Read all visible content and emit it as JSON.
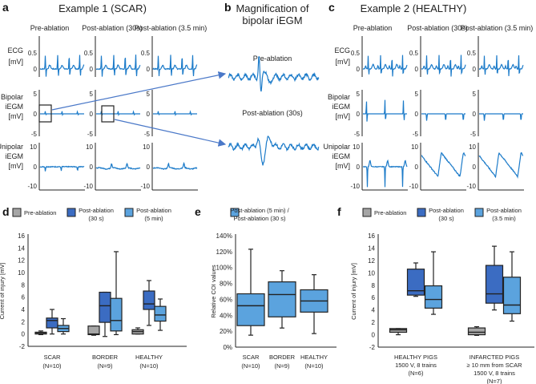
{
  "panel_a": {
    "letter": "a",
    "title": "Example 1 (SCAR)",
    "columns": [
      "Pre-ablation",
      "Post-ablation (30s)",
      "Post-ablation (3.5 min)"
    ],
    "rows": [
      {
        "l1": "ECG",
        "l2": "[mV]",
        "ticks": [
          "0.5",
          "0"
        ]
      },
      {
        "l1": "Bipolar",
        "l2": "iEGM",
        "l3": "[mV]",
        "ticks": [
          "5",
          "0",
          "-5"
        ]
      },
      {
        "l1": "Unipolar",
        "l2": "iEGM",
        "l3": "[mV]",
        "ticks": [
          "10",
          "0",
          "-10"
        ]
      }
    ]
  },
  "panel_b": {
    "letter": "b",
    "title1": "Magnification of",
    "title2": "bipolar iEGM",
    "pre": "Pre-ablation",
    "post": "Post-ablation (30s)"
  },
  "panel_c": {
    "letter": "c",
    "title": "Example 2 (HEALTHY)",
    "columns": [
      "Pre-ablation",
      "Post-ablation (30s)",
      "Post-ablation (3.5 min)"
    ]
  },
  "colors": {
    "pre": "#a6a6a6",
    "post_early": "#3b6cc2",
    "post_late": "#5ba3de",
    "trace": "#1c7bc9",
    "arrow": "#4a78c8"
  },
  "chart_data": [
    {
      "type": "box",
      "panel": "d",
      "legend": [
        {
          "name": "Pre-ablation"
        },
        {
          "name": "Post-ablation",
          "name2": "(30 s)"
        },
        {
          "name": "Post-ablation",
          "name2": "(5 min)"
        }
      ],
      "ylabel": "Current of injury [mV]",
      "ylim": [
        -2,
        16
      ],
      "yticks": [
        "16",
        "14",
        "12",
        "10",
        "8",
        "6",
        "4",
        "2",
        "0",
        "-2"
      ],
      "categories": [
        {
          "l1": "SCAR",
          "l2": "(N=10)"
        },
        {
          "l1": "BORDER",
          "l2": "(N=9)"
        },
        {
          "l1": "HEALTHY",
          "l2": "(N=10)"
        }
      ],
      "series": [
        {
          "name": "Pre-ablation",
          "boxes": [
            [
              -0.1,
              0,
              0.2,
              0.3,
              0.5
            ],
            [
              -0.2,
              -0.1,
              0,
              1.3,
              1.3
            ],
            [
              0,
              0,
              0.4,
              0.7,
              1.0
            ]
          ]
        },
        {
          "name": "Post-ablation (30 s)",
          "boxes": [
            [
              0,
              1.0,
              2.2,
              2.6,
              4.0
            ],
            [
              -0.4,
              1.9,
              4.6,
              6.8,
              6.8
            ],
            [
              1.4,
              4.0,
              4.9,
              7.0,
              8.7
            ]
          ]
        },
        {
          "name": "Post-ablation (5 min)",
          "boxes": [
            [
              0,
              0.4,
              0.9,
              1.4,
              2.5
            ],
            [
              -0.1,
              0.5,
              2.2,
              5.8,
              13.4
            ],
            [
              0.6,
              2.1,
              3.1,
              4.5,
              5.7
            ]
          ]
        }
      ]
    },
    {
      "type": "box",
      "panel": "e",
      "legend": [
        {
          "name": "Post-ablation (5 min) /",
          "name2": "Post-ablation (30 s)"
        }
      ],
      "ylabel": "Relative COI values",
      "ylim": [
        0,
        140
      ],
      "yticks": [
        "140%",
        "120%",
        "100%",
        "80%",
        "60%",
        "40%",
        "20%",
        "0%"
      ],
      "categories": [
        {
          "l1": "SCAR",
          "l2": "(N=10)"
        },
        {
          "l1": "BORDER",
          "l2": "(N=9)"
        },
        {
          "l1": "HEALTHY",
          "l2": "(N=10)"
        }
      ],
      "series": [
        {
          "name": "Post-ablation (5 min) / Post-ablation (30 s)",
          "boxes": [
            [
              15,
              27,
              52,
              67,
              123
            ],
            [
              24,
              38,
              66,
              82,
              96
            ],
            [
              17,
              44,
              58,
              72,
              91
            ]
          ]
        }
      ]
    },
    {
      "type": "box",
      "panel": "f",
      "legend": [
        {
          "name": "Pre-ablation"
        },
        {
          "name": "Post-ablation",
          "name2": "(30 s)"
        },
        {
          "name": "Post-ablation",
          "name2": "(3.5 min)"
        }
      ],
      "ylabel": "Current of injury [mV]",
      "ylim": [
        -2,
        16
      ],
      "yticks": [
        "16",
        "14",
        "12",
        "10",
        "8",
        "6",
        "4",
        "2",
        "0",
        "-2"
      ],
      "categories": [
        {
          "lines": [
            "HEALTHY PIGS",
            "1500 V, 8 trains",
            "(N=6)"
          ]
        },
        {
          "lines": [
            "INFARCTED PIGS",
            "≥ 10 mm from SCAR",
            "1500 V, 8 trains",
            "(N=7)"
          ]
        }
      ],
      "series": [
        {
          "name": "Pre-ablation",
          "boxes": [
            [
              0,
              0.4,
              0.8,
              1.0,
              1.0
            ],
            [
              -0.1,
              0,
              0.4,
              1.1,
              1.3
            ]
          ]
        },
        {
          "name": "Post-ablation (30 s)",
          "boxes": [
            [
              6.2,
              6.4,
              7.1,
              10.6,
              11.6
            ],
            [
              4.0,
              5.1,
              6.6,
              11.2,
              14.3
            ]
          ]
        },
        {
          "name": "Post-ablation (3.5 min)",
          "boxes": [
            [
              3.3,
              4.3,
              5.7,
              7.9,
              13.4
            ],
            [
              2.2,
              3.4,
              4.8,
              9.3,
              13.4
            ]
          ]
        }
      ]
    }
  ]
}
